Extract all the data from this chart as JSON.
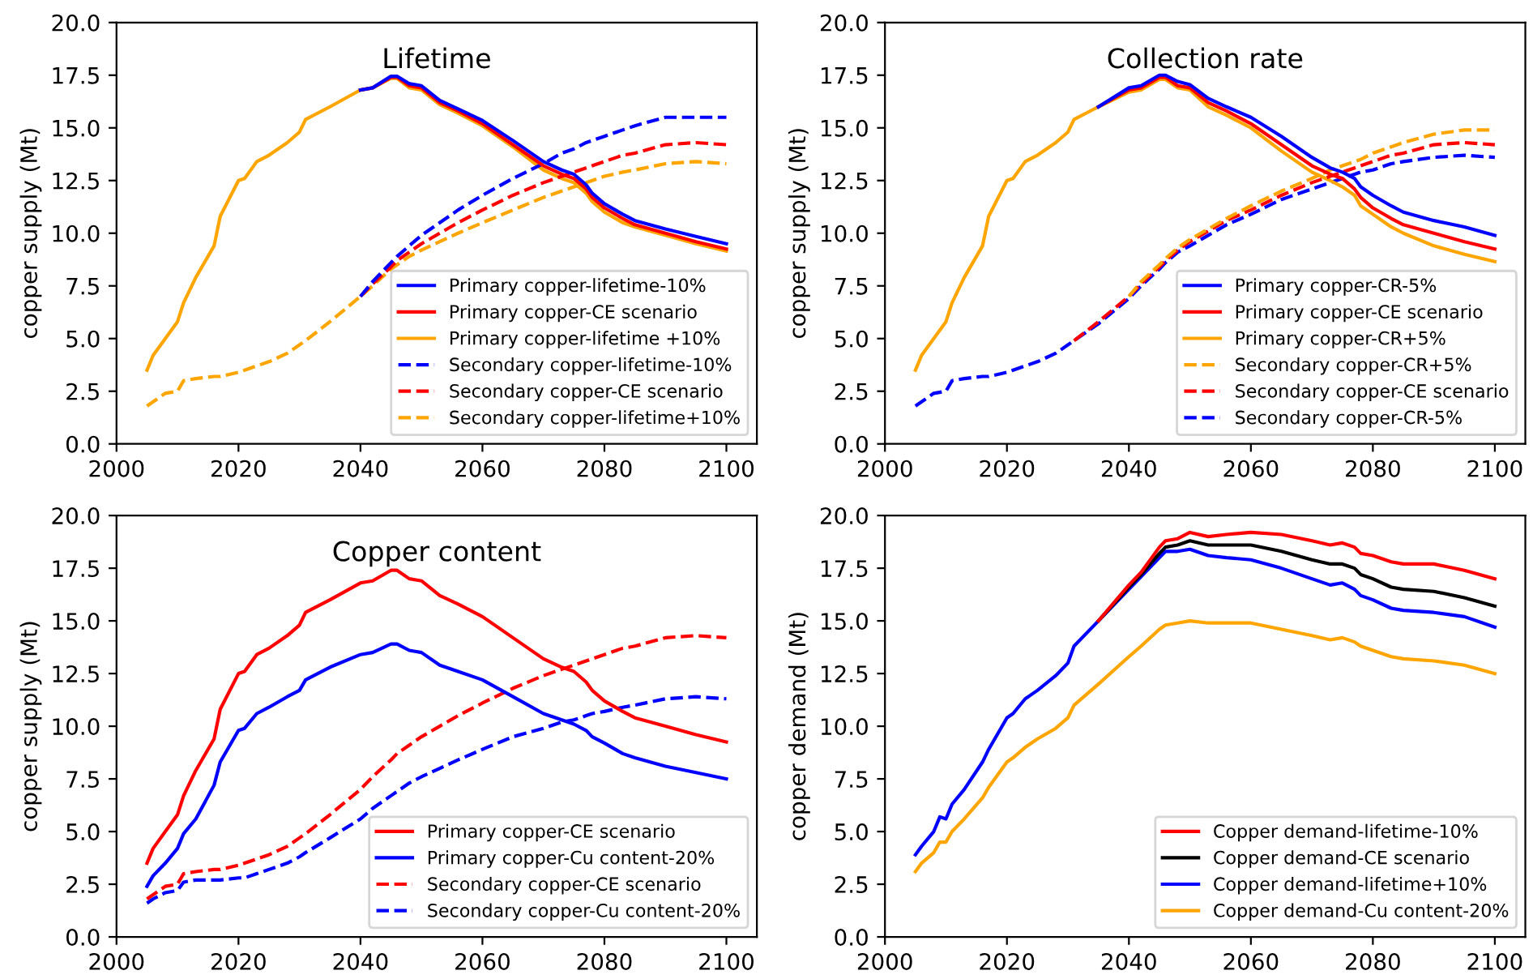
{
  "chart_data": [
    {
      "type": "line",
      "title": "Lifetime",
      "ylabel": "copper supply (Mt)",
      "xlim": [
        2000,
        2105
      ],
      "xticks": [
        2000,
        2020,
        2040,
        2060,
        2080,
        2100
      ],
      "ylim": [
        0,
        20
      ],
      "yticks": [
        {
          "value": 0,
          "label": "0.0"
        },
        2.5,
        {
          "value": 5,
          "label": "5.0"
        },
        7.5,
        {
          "value": 10,
          "label": "10.0"
        },
        12.5,
        {
          "value": 15,
          "label": "15.0"
        },
        17.5,
        {
          "value": 20,
          "label": "20.0"
        }
      ],
      "grid": false,
      "legend": "bottom right",
      "x": [
        2005,
        2006,
        2008,
        2010,
        2011,
        2013,
        2016,
        2017,
        2020,
        2021,
        2023,
        2025,
        2028,
        2030,
        2031,
        2035,
        2040,
        2042,
        2045,
        2046,
        2048,
        2050,
        2053,
        2056,
        2060,
        2065,
        2070,
        2073,
        2075,
        2077,
        2078,
        2080,
        2083,
        2085,
        2090,
        2095,
        2100
      ],
      "series": [
        {
          "name": "Primary copper-lifetime-10%",
          "color": "#0000ff",
          "line_style": "solid",
          "values": [
            null,
            null,
            null,
            null,
            null,
            null,
            null,
            null,
            null,
            null,
            null,
            null,
            null,
            null,
            null,
            null,
            16.8,
            16.9,
            17.45,
            17.45,
            17.1,
            17.0,
            16.3,
            15.9,
            15.35,
            14.4,
            13.4,
            13.0,
            12.8,
            12.3,
            11.9,
            11.4,
            10.9,
            10.6,
            10.2,
            9.85,
            9.5
          ]
        },
        {
          "name": "Primary copper-CE scenario",
          "color": "#ff0000",
          "line_style": "solid",
          "values": [
            null,
            null,
            null,
            null,
            null,
            null,
            null,
            null,
            null,
            null,
            null,
            null,
            null,
            null,
            null,
            null,
            16.8,
            16.9,
            17.4,
            17.4,
            17.0,
            16.9,
            16.2,
            15.8,
            15.2,
            14.2,
            13.2,
            12.8,
            12.6,
            12.1,
            11.7,
            11.2,
            10.7,
            10.4,
            10.0,
            9.6,
            9.25
          ]
        },
        {
          "name": "Primary copper-lifetime +10%",
          "color": "#ffa500",
          "line_style": "solid",
          "values": [
            3.5,
            4.2,
            5.0,
            5.8,
            6.7,
            7.9,
            9.4,
            10.8,
            12.5,
            12.6,
            13.4,
            13.7,
            14.3,
            14.8,
            15.4,
            16.0,
            16.8,
            16.9,
            17.35,
            17.35,
            16.9,
            16.8,
            16.1,
            15.7,
            15.1,
            14.1,
            13.0,
            12.6,
            12.4,
            11.9,
            11.5,
            11.0,
            10.5,
            10.3,
            9.9,
            9.5,
            9.15
          ]
        },
        {
          "name": "Secondary copper-lifetime-10%",
          "color": "#0000ff",
          "line_style": "dashed",
          "values": [
            null,
            null,
            null,
            null,
            null,
            null,
            null,
            null,
            null,
            null,
            null,
            null,
            null,
            null,
            null,
            null,
            7.0,
            7.7,
            8.6,
            8.9,
            9.4,
            9.9,
            10.5,
            11.1,
            11.8,
            12.6,
            13.3,
            13.8,
            14.0,
            14.3,
            14.4,
            14.6,
            14.9,
            15.1,
            15.5,
            15.5,
            15.5
          ]
        },
        {
          "name": "Secondary copper-CE scenario",
          "color": "#ff0000",
          "line_style": "dashed",
          "values": [
            null,
            null,
            null,
            null,
            null,
            null,
            null,
            null,
            null,
            null,
            null,
            null,
            null,
            null,
            null,
            null,
            7.0,
            7.6,
            8.4,
            8.7,
            9.1,
            9.5,
            10.0,
            10.5,
            11.1,
            11.8,
            12.4,
            12.7,
            12.9,
            13.1,
            13.2,
            13.4,
            13.7,
            13.8,
            14.2,
            14.3,
            14.2
          ]
        },
        {
          "name": "Secondary copper-lifetime+10%",
          "color": "#ffa500",
          "line_style": "dashed",
          "values": [
            1.8,
            2.0,
            2.4,
            2.5,
            3.0,
            3.1,
            3.2,
            3.2,
            3.4,
            3.5,
            3.7,
            3.9,
            4.3,
            4.7,
            4.9,
            5.8,
            7.0,
            7.5,
            8.3,
            8.5,
            8.9,
            9.2,
            9.6,
            10.0,
            10.5,
            11.1,
            11.7,
            12.0,
            12.2,
            12.4,
            12.5,
            12.7,
            12.9,
            13.0,
            13.3,
            13.4,
            13.3
          ]
        }
      ]
    },
    {
      "type": "line",
      "title": "Collection rate",
      "ylabel": "copper supply (Mt)",
      "xlim": [
        2000,
        2105
      ],
      "xticks": [
        2000,
        2020,
        2040,
        2060,
        2080,
        2100
      ],
      "ylim": [
        0,
        20
      ],
      "yticks": [
        {
          "value": 0,
          "label": "0.0"
        },
        2.5,
        {
          "value": 5,
          "label": "5.0"
        },
        7.5,
        {
          "value": 10,
          "label": "10.0"
        },
        12.5,
        {
          "value": 15,
          "label": "15.0"
        },
        17.5,
        {
          "value": 20,
          "label": "20.0"
        }
      ],
      "grid": false,
      "legend": "bottom right",
      "x": [
        2005,
        2006,
        2008,
        2010,
        2011,
        2013,
        2016,
        2017,
        2020,
        2021,
        2023,
        2025,
        2028,
        2030,
        2031,
        2035,
        2040,
        2042,
        2045,
        2046,
        2048,
        2050,
        2053,
        2056,
        2060,
        2065,
        2070,
        2073,
        2075,
        2077,
        2078,
        2080,
        2083,
        2085,
        2090,
        2095,
        2100
      ],
      "series": [
        {
          "name": "Primary copper-CR-5%",
          "color": "#0000ff",
          "line_style": "solid",
          "values": [
            null,
            null,
            null,
            null,
            null,
            null,
            null,
            null,
            null,
            null,
            null,
            null,
            null,
            null,
            null,
            16.0,
            16.9,
            17.0,
            17.5,
            17.5,
            17.2,
            17.05,
            16.4,
            16.0,
            15.5,
            14.6,
            13.6,
            13.1,
            12.9,
            12.6,
            12.2,
            11.8,
            11.3,
            11.0,
            10.6,
            10.3,
            9.9
          ]
        },
        {
          "name": "Primary copper-CE scenario",
          "color": "#ff0000",
          "line_style": "solid",
          "values": [
            null,
            null,
            null,
            null,
            null,
            null,
            null,
            null,
            null,
            null,
            null,
            null,
            null,
            null,
            null,
            16.0,
            16.8,
            16.9,
            17.4,
            17.4,
            17.0,
            16.9,
            16.2,
            15.8,
            15.2,
            14.2,
            13.2,
            12.8,
            12.6,
            12.1,
            11.7,
            11.2,
            10.7,
            10.4,
            10.0,
            9.6,
            9.25
          ]
        },
        {
          "name": "Primary copper-CR+5%",
          "color": "#ffa500",
          "line_style": "solid",
          "values": [
            3.5,
            4.2,
            5.0,
            5.8,
            6.7,
            7.9,
            9.4,
            10.8,
            12.5,
            12.6,
            13.4,
            13.7,
            14.3,
            14.8,
            15.4,
            16.0,
            16.7,
            16.8,
            17.3,
            17.3,
            16.9,
            16.8,
            16.0,
            15.6,
            15.0,
            13.9,
            12.9,
            12.5,
            12.2,
            11.8,
            11.3,
            10.9,
            10.3,
            10.0,
            9.4,
            9.0,
            8.65
          ]
        },
        {
          "name": "Secondary copper-CR+5%",
          "color": "#ffa500",
          "line_style": "dashed",
          "values": [
            null,
            null,
            null,
            null,
            null,
            null,
            null,
            null,
            null,
            null,
            null,
            null,
            null,
            null,
            null,
            null,
            7.0,
            7.7,
            8.5,
            8.8,
            9.3,
            9.7,
            10.2,
            10.7,
            11.3,
            12.0,
            12.6,
            13.0,
            13.2,
            13.4,
            13.5,
            13.8,
            14.1,
            14.3,
            14.7,
            14.9,
            14.9
          ]
        },
        {
          "name": "Secondary copper-CE scenario",
          "color": "#ff0000",
          "line_style": "dashed",
          "values": [
            null,
            null,
            null,
            null,
            null,
            null,
            null,
            null,
            null,
            null,
            null,
            null,
            null,
            null,
            4.9,
            5.8,
            7.0,
            7.6,
            8.4,
            8.7,
            9.2,
            9.6,
            10.1,
            10.6,
            11.1,
            11.8,
            12.4,
            12.7,
            12.9,
            13.1,
            13.2,
            13.4,
            13.7,
            13.8,
            14.2,
            14.3,
            14.2
          ]
        },
        {
          "name": "Secondary copper-CR-5%",
          "color": "#0000ff",
          "line_style": "dashed",
          "values": [
            1.8,
            2.0,
            2.4,
            2.5,
            3.0,
            3.1,
            3.2,
            3.2,
            3.4,
            3.5,
            3.7,
            3.9,
            4.3,
            4.7,
            4.9,
            5.7,
            6.9,
            7.5,
            8.3,
            8.6,
            9.1,
            9.4,
            9.9,
            10.4,
            10.9,
            11.6,
            12.1,
            12.4,
            12.6,
            12.8,
            12.9,
            13.0,
            13.3,
            13.4,
            13.6,
            13.7,
            13.6
          ]
        }
      ]
    },
    {
      "type": "line",
      "title": "Copper content",
      "ylabel": "copper supply (Mt)",
      "xlim": [
        2000,
        2105
      ],
      "xticks": [
        2000,
        2020,
        2040,
        2060,
        2080,
        2100
      ],
      "ylim": [
        0,
        20
      ],
      "yticks": [
        {
          "value": 0,
          "label": "0.0"
        },
        2.5,
        {
          "value": 5,
          "label": "5.0"
        },
        7.5,
        {
          "value": 10,
          "label": "10.0"
        },
        12.5,
        {
          "value": 15,
          "label": "15.0"
        },
        17.5,
        {
          "value": 20,
          "label": "20.0"
        }
      ],
      "grid": false,
      "legend": "bottom right",
      "x": [
        2005,
        2006,
        2008,
        2010,
        2011,
        2013,
        2016,
        2017,
        2020,
        2021,
        2023,
        2025,
        2028,
        2030,
        2031,
        2035,
        2040,
        2042,
        2045,
        2046,
        2048,
        2050,
        2053,
        2056,
        2060,
        2065,
        2070,
        2073,
        2075,
        2077,
        2078,
        2080,
        2083,
        2085,
        2090,
        2095,
        2100
      ],
      "series": [
        {
          "name": "Primary copper-CE scenario",
          "color": "#ff0000",
          "line_style": "solid",
          "values": [
            3.5,
            4.2,
            5.0,
            5.8,
            6.7,
            7.9,
            9.4,
            10.8,
            12.5,
            12.6,
            13.4,
            13.7,
            14.3,
            14.8,
            15.4,
            16.0,
            16.8,
            16.9,
            17.4,
            17.4,
            17.0,
            16.9,
            16.2,
            15.8,
            15.2,
            14.2,
            13.2,
            12.8,
            12.6,
            12.1,
            11.7,
            11.2,
            10.7,
            10.4,
            10.0,
            9.6,
            9.25
          ]
        },
        {
          "name": "Primary copper-Cu content-20%",
          "color": "#0000ff",
          "line_style": "solid",
          "values": [
            2.4,
            2.9,
            3.5,
            4.2,
            4.9,
            5.6,
            7.2,
            8.3,
            9.8,
            9.9,
            10.6,
            10.9,
            11.4,
            11.7,
            12.2,
            12.8,
            13.4,
            13.5,
            13.9,
            13.9,
            13.6,
            13.5,
            12.9,
            12.6,
            12.2,
            11.4,
            10.6,
            10.3,
            10.1,
            9.8,
            9.5,
            9.2,
            8.7,
            8.5,
            8.1,
            7.8,
            7.5
          ]
        },
        {
          "name": "Secondary copper-CE scenario",
          "color": "#ff0000",
          "line_style": "dashed",
          "values": [
            1.8,
            2.0,
            2.4,
            2.5,
            3.0,
            3.1,
            3.2,
            3.2,
            3.4,
            3.5,
            3.7,
            3.9,
            4.3,
            4.7,
            4.9,
            5.8,
            7.0,
            7.6,
            8.4,
            8.7,
            9.1,
            9.5,
            10.0,
            10.5,
            11.1,
            11.8,
            12.4,
            12.7,
            12.9,
            13.1,
            13.2,
            13.4,
            13.7,
            13.8,
            14.2,
            14.3,
            14.2
          ]
        },
        {
          "name": "Secondary copper-Cu content-20%",
          "color": "#0000ff",
          "line_style": "dashed",
          "values": [
            1.6,
            1.8,
            2.1,
            2.2,
            2.6,
            2.7,
            2.7,
            2.7,
            2.8,
            2.8,
            3.0,
            3.2,
            3.5,
            3.8,
            4.0,
            4.7,
            5.6,
            6.1,
            6.7,
            6.9,
            7.3,
            7.6,
            8.0,
            8.4,
            8.9,
            9.5,
            9.9,
            10.2,
            10.3,
            10.5,
            10.6,
            10.7,
            10.9,
            11.0,
            11.3,
            11.4,
            11.3
          ]
        }
      ]
    },
    {
      "type": "line",
      "ylabel": "copper demand (Mt)",
      "xlim": [
        2000,
        2105
      ],
      "xticks": [
        2000,
        2020,
        2040,
        2060,
        2080,
        2100
      ],
      "ylim": [
        0,
        20
      ],
      "yticks": [
        {
          "value": 0,
          "label": "0.0"
        },
        2.5,
        {
          "value": 5,
          "label": "5.0"
        },
        7.5,
        {
          "value": 10,
          "label": "10.0"
        },
        12.5,
        {
          "value": 15,
          "label": "15.0"
        },
        17.5,
        {
          "value": 20,
          "label": "20.0"
        }
      ],
      "grid": false,
      "legend": "bottom right",
      "x": [
        2005,
        2006,
        2008,
        2009,
        2010,
        2011,
        2013,
        2016,
        2017,
        2020,
        2021,
        2023,
        2025,
        2028,
        2030,
        2031,
        2035,
        2040,
        2042,
        2045,
        2046,
        2048,
        2050,
        2053,
        2056,
        2060,
        2065,
        2070,
        2073,
        2075,
        2077,
        2078,
        2080,
        2083,
        2085,
        2090,
        2095,
        2100
      ],
      "series": [
        {
          "name": "Copper demand-lifetime-10%",
          "color": "#ff0000",
          "line_style": "solid",
          "values": [
            null,
            null,
            null,
            null,
            null,
            null,
            null,
            null,
            null,
            null,
            null,
            null,
            null,
            null,
            null,
            null,
            15.0,
            16.7,
            17.3,
            18.5,
            18.8,
            18.9,
            19.2,
            19.0,
            19.1,
            19.2,
            19.1,
            18.8,
            18.6,
            18.7,
            18.5,
            18.2,
            18.1,
            17.8,
            17.7,
            17.7,
            17.4,
            17.0
          ]
        },
        {
          "name": "Copper demand-CE scenario",
          "color": "#000000",
          "line_style": "solid",
          "values": [
            null,
            null,
            null,
            null,
            null,
            null,
            null,
            null,
            null,
            null,
            null,
            null,
            null,
            null,
            null,
            null,
            15.0,
            16.6,
            17.2,
            18.2,
            18.5,
            18.6,
            18.8,
            18.6,
            18.6,
            18.6,
            18.3,
            17.9,
            17.7,
            17.7,
            17.5,
            17.2,
            17.0,
            16.6,
            16.5,
            16.4,
            16.1,
            15.7
          ]
        },
        {
          "name": "Copper demand-lifetime+10%",
          "color": "#0000ff",
          "line_style": "solid",
          "values": [
            3.9,
            4.3,
            5.0,
            5.7,
            5.6,
            6.3,
            7.0,
            8.3,
            8.9,
            10.4,
            10.6,
            11.3,
            11.7,
            12.4,
            13.0,
            13.8,
            15.0,
            16.5,
            17.1,
            18.0,
            18.3,
            18.3,
            18.4,
            18.1,
            18.0,
            17.9,
            17.5,
            17.0,
            16.7,
            16.8,
            16.5,
            16.2,
            16.0,
            15.6,
            15.5,
            15.4,
            15.2,
            14.7
          ]
        },
        {
          "name": "Copper demand-Cu content-20%",
          "color": "#ffa500",
          "line_style": "solid",
          "values": [
            3.1,
            3.5,
            4.0,
            4.5,
            4.5,
            5.0,
            5.6,
            6.6,
            7.1,
            8.3,
            8.5,
            9.0,
            9.4,
            9.9,
            10.4,
            11.0,
            12.0,
            13.3,
            13.8,
            14.6,
            14.8,
            14.9,
            15.0,
            14.9,
            14.9,
            14.9,
            14.6,
            14.3,
            14.1,
            14.2,
            14.0,
            13.8,
            13.6,
            13.3,
            13.2,
            13.1,
            12.9,
            12.5
          ]
        }
      ]
    }
  ]
}
